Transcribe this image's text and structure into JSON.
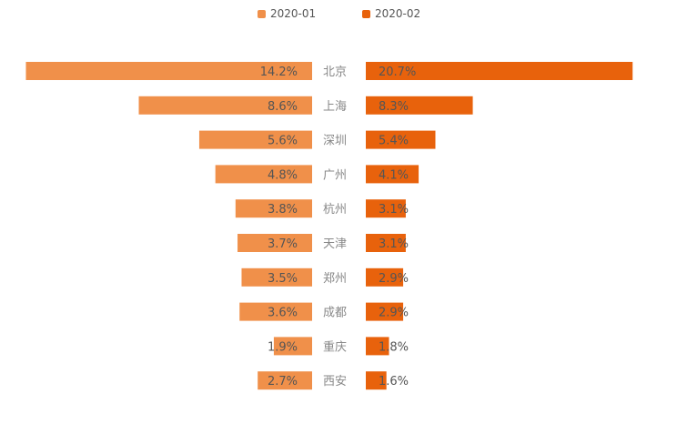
{
  "chart_data": {
    "type": "bar",
    "orientation": "butterfly-horizontal",
    "categories": [
      "北京",
      "上海",
      "深圳",
      "广州",
      "杭州",
      "天津",
      "郑州",
      "成都",
      "重庆",
      "西安"
    ],
    "series": [
      {
        "name": "2020-01",
        "color": "#f0904a",
        "values": [
          14.2,
          8.6,
          5.6,
          4.8,
          3.8,
          3.7,
          3.5,
          3.6,
          1.9,
          2.7
        ],
        "labels": [
          "14.2%",
          "8.6%",
          "5.6%",
          "4.8%",
          "3.8%",
          "3.7%",
          "3.5%",
          "3.6%",
          "1.9%",
          "2.7%"
        ]
      },
      {
        "name": "2020-02",
        "color": "#e8620c",
        "values": [
          20.7,
          8.3,
          5.4,
          4.1,
          3.1,
          3.1,
          2.9,
          2.9,
          1.8,
          1.6
        ],
        "labels": [
          "20.7%",
          "8.3%",
          "5.4%",
          "4.1%",
          "3.1%",
          "3.1%",
          "2.9%",
          "2.9%",
          "1.8%",
          "1.6%"
        ]
      }
    ],
    "legend_position": "top-center",
    "grid": false,
    "value_unit": "%",
    "label_color": "#555555",
    "category_label_color": "#888888"
  }
}
